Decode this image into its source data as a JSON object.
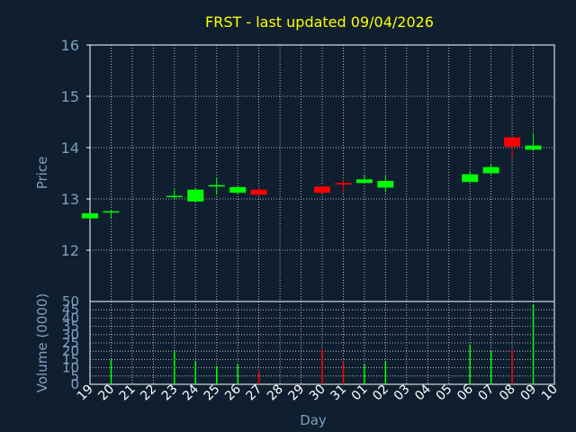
{
  "title": "FRST - last updated 09/04/2026",
  "colors": {
    "background": "#0f1f30",
    "up": "#00ff00",
    "down": "#ff0000",
    "text": "#7f9fbf",
    "title": "#ffff00",
    "grid": "#ffffff"
  },
  "chart_data": [
    {
      "type": "candlestick",
      "ylabel": "Price",
      "ylim": [
        11,
        16
      ],
      "yticks": [
        12,
        13,
        14,
        15,
        16
      ],
      "grid": true,
      "x": [
        "19",
        "20",
        "21",
        "22",
        "23",
        "24",
        "25",
        "26",
        "27",
        "28",
        "29",
        "30",
        "31",
        "01",
        "02",
        "03",
        "04",
        "05",
        "06",
        "07",
        "08",
        "09",
        "10"
      ],
      "candles": [
        {
          "x": "19",
          "open": 12.62,
          "high": 12.72,
          "low": 12.6,
          "close": 12.72
        },
        {
          "x": "20",
          "open": 12.74,
          "high": 12.78,
          "low": 12.62,
          "close": 12.76
        },
        {
          "x": "23",
          "open": 13.04,
          "high": 13.18,
          "low": 12.98,
          "close": 13.06
        },
        {
          "x": "24",
          "open": 12.95,
          "high": 13.2,
          "low": 12.93,
          "close": 13.18
        },
        {
          "x": "25",
          "open": 13.24,
          "high": 13.42,
          "low": 13.08,
          "close": 13.27
        },
        {
          "x": "26",
          "open": 13.12,
          "high": 13.24,
          "low": 13.1,
          "close": 13.23
        },
        {
          "x": "27",
          "open": 13.18,
          "high": 13.22,
          "low": 13.07,
          "close": 13.08
        },
        {
          "x": "30",
          "open": 13.24,
          "high": 13.26,
          "low": 13.1,
          "close": 13.12
        },
        {
          "x": "31",
          "open": 13.31,
          "high": 13.38,
          "low": 13.12,
          "close": 13.28
        },
        {
          "x": "01",
          "open": 13.31,
          "high": 13.46,
          "low": 13.31,
          "close": 13.38
        },
        {
          "x": "02",
          "open": 13.22,
          "high": 13.45,
          "low": 13.13,
          "close": 13.35
        },
        {
          "x": "06",
          "open": 13.33,
          "high": 13.54,
          "low": 13.33,
          "close": 13.48
        },
        {
          "x": "07",
          "open": 13.5,
          "high": 13.68,
          "low": 13.48,
          "close": 13.62
        },
        {
          "x": "08",
          "open": 14.2,
          "high": 14.2,
          "low": 13.8,
          "close": 14.02
        },
        {
          "x": "09",
          "open": 13.96,
          "high": 14.28,
          "low": 13.94,
          "close": 14.04
        }
      ]
    },
    {
      "type": "bar",
      "ylabel": "Volume (0000)",
      "xlabel": "Day",
      "ylim": [
        0,
        50
      ],
      "yticks": [
        0,
        5,
        10,
        15,
        20,
        25,
        30,
        35,
        40,
        45,
        50
      ],
      "grid": true,
      "bars": [
        {
          "x": "20",
          "value": 15,
          "direction": "up"
        },
        {
          "x": "23",
          "value": 20,
          "direction": "up"
        },
        {
          "x": "24",
          "value": 14,
          "direction": "up"
        },
        {
          "x": "25",
          "value": 11,
          "direction": "up"
        },
        {
          "x": "26",
          "value": 12,
          "direction": "up"
        },
        {
          "x": "27",
          "value": 8,
          "direction": "down"
        },
        {
          "x": "30",
          "value": 21,
          "direction": "down"
        },
        {
          "x": "31",
          "value": 14,
          "direction": "down"
        },
        {
          "x": "01",
          "value": 12,
          "direction": "up"
        },
        {
          "x": "02",
          "value": 14,
          "direction": "up"
        },
        {
          "x": "06",
          "value": 24,
          "direction": "up"
        },
        {
          "x": "07",
          "value": 20,
          "direction": "up"
        },
        {
          "x": "08",
          "value": 21,
          "direction": "down"
        },
        {
          "x": "09",
          "value": 48,
          "direction": "up"
        }
      ]
    }
  ]
}
